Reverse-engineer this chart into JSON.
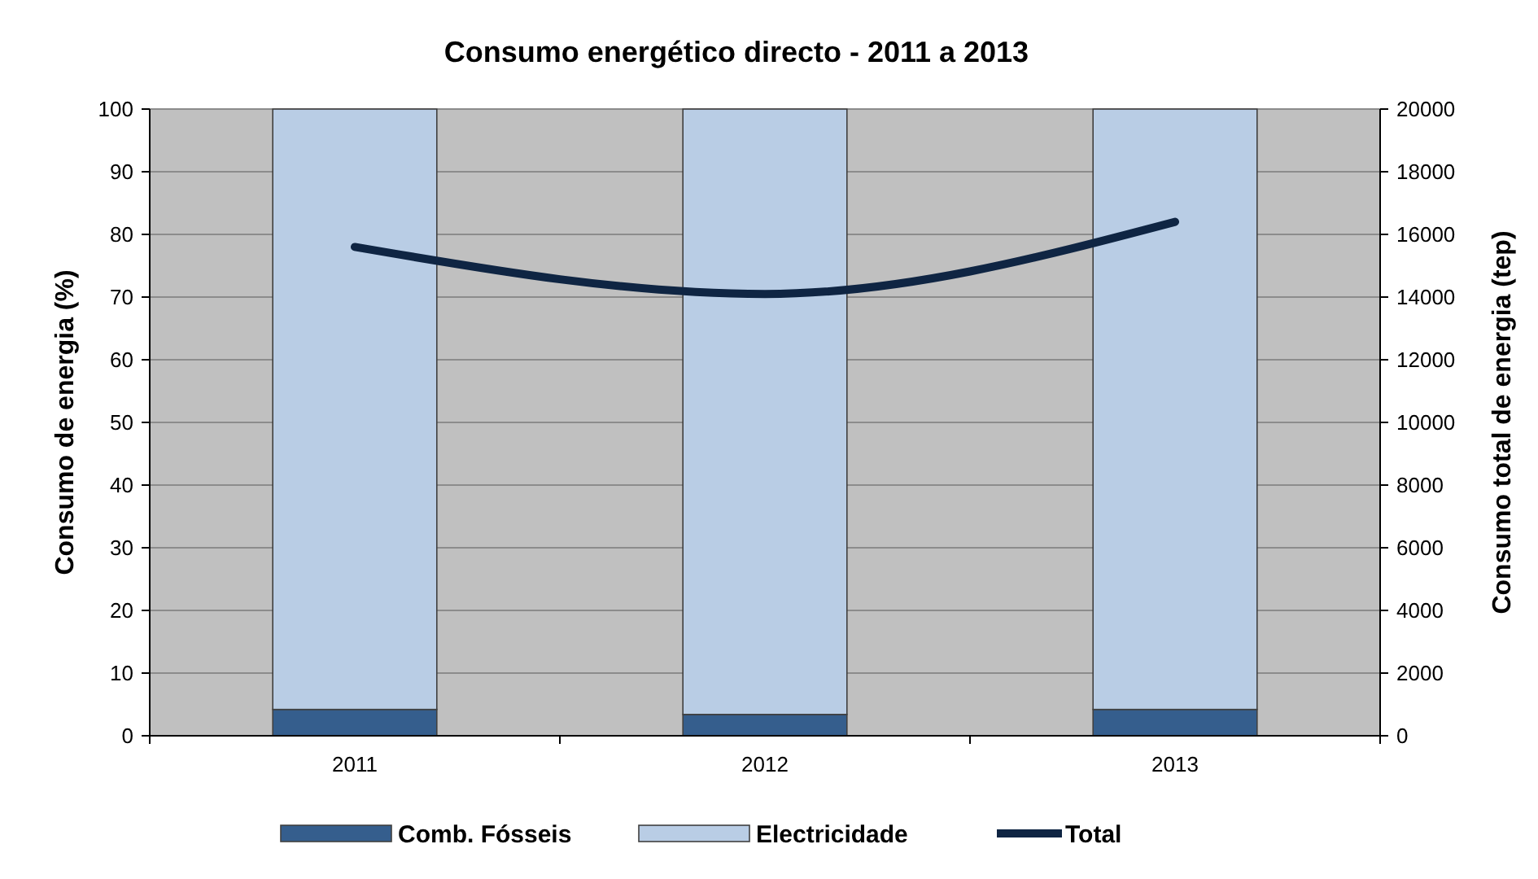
{
  "chart_data": {
    "type": "bar",
    "title": "Consumo energético directo - 2011 a 2013",
    "ylabel": "Consumo de energia (%)",
    "y2label": "Consumo total de energia (tep)",
    "categories": [
      "2011",
      "2012",
      "2013"
    ],
    "stacked": true,
    "series": [
      {
        "name": "Comb. Fósseis",
        "color": "#355e8d",
        "values": [
          4.2,
          3.4,
          4.2
        ]
      },
      {
        "name": "Electricidade",
        "color": "#b9cde5",
        "values": [
          95.8,
          96.6,
          95.8
        ]
      },
      {
        "name": "Total",
        "type": "line",
        "axis": "y2",
        "color": "#0f2543",
        "values": [
          15600,
          14100,
          16400
        ]
      }
    ],
    "ylim": [
      0,
      100
    ],
    "yticks": [
      0,
      10,
      20,
      30,
      40,
      50,
      60,
      70,
      80,
      90,
      100
    ],
    "y2lim": [
      0,
      20000
    ],
    "y2ticks": [
      0,
      2000,
      4000,
      6000,
      8000,
      10000,
      12000,
      14000,
      16000,
      18000,
      20000
    ],
    "grid": "y",
    "legend": "bottom"
  }
}
